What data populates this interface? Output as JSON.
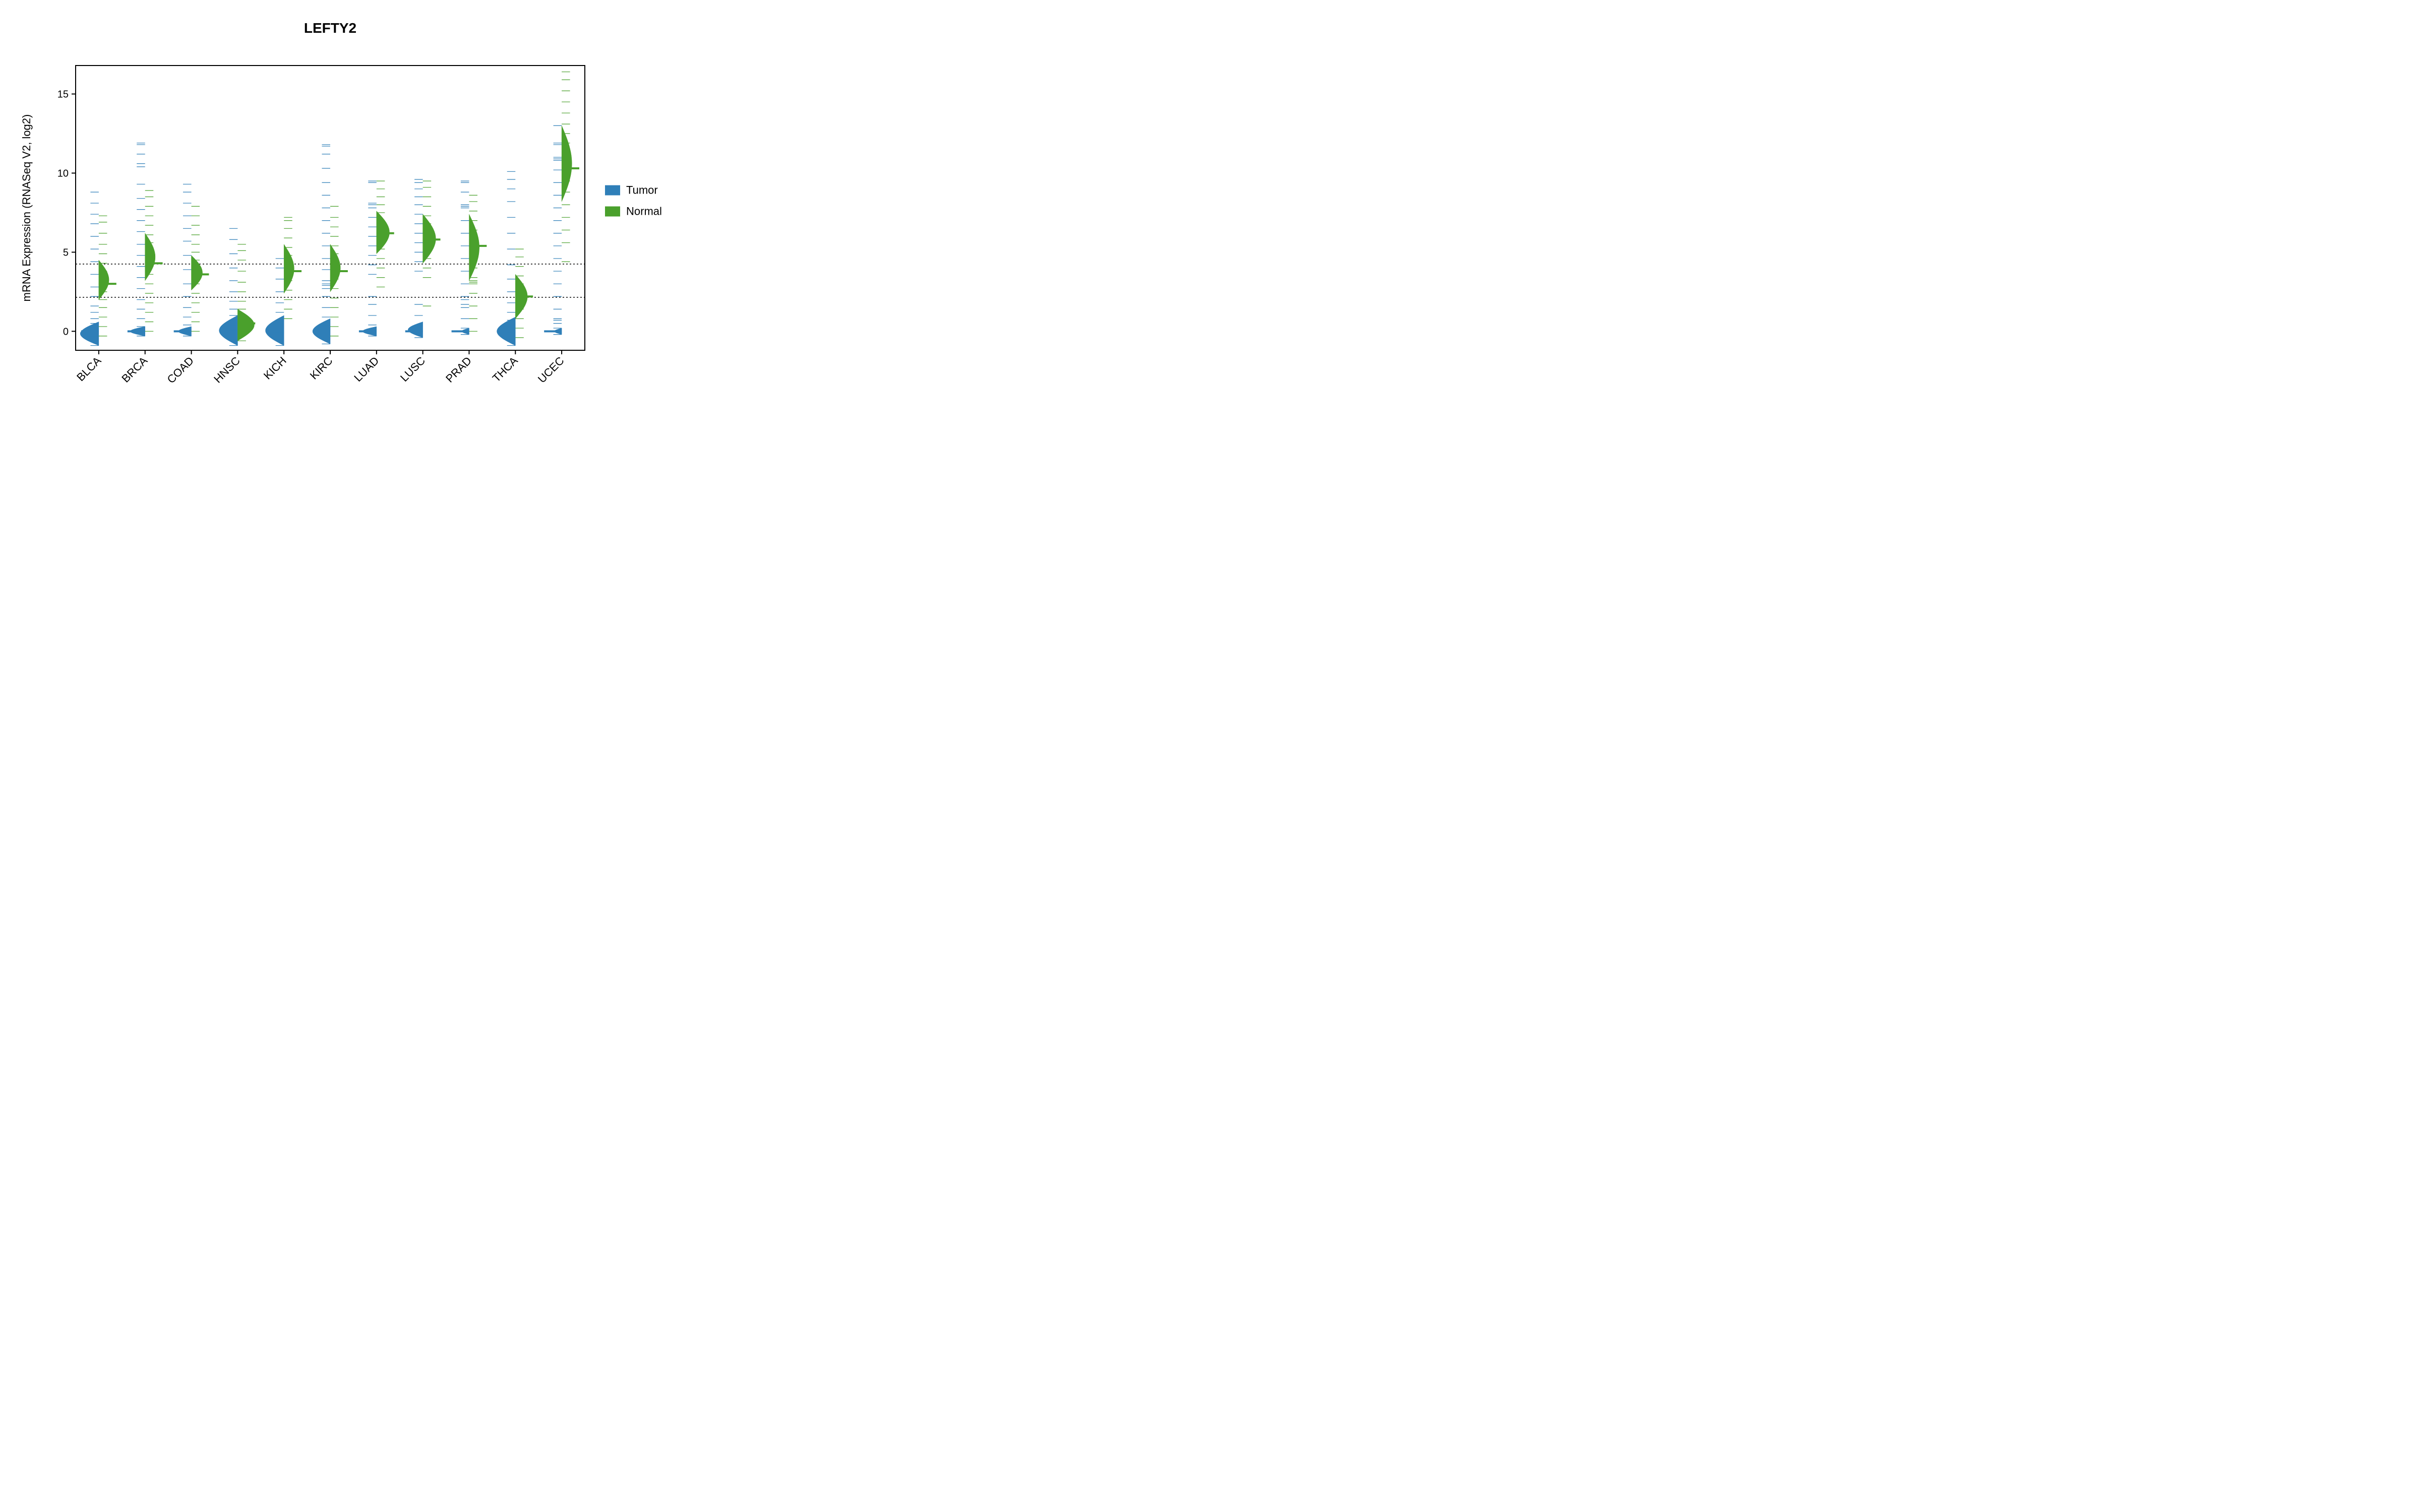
{
  "chart": {
    "type": "beanplot",
    "title": "LEFTY2",
    "ylabel": "mRNA Expression (RNASeq V2, log2)",
    "ylim": [
      -1.2,
      16.8
    ],
    "yticks": [
      0,
      5,
      10,
      15
    ],
    "hlines": [
      2.15,
      4.25
    ],
    "hline_color": "#000000",
    "background": "#ffffff",
    "border_color": "#000000",
    "categories": [
      "BLCA",
      "BRCA",
      "COAD",
      "HNSC",
      "KICH",
      "KIRC",
      "LUAD",
      "LUSC",
      "PRAD",
      "THCA",
      "UCEC"
    ],
    "groups": [
      "Tumor",
      "Normal"
    ],
    "colors": {
      "Tumor": "#2f7fb8",
      "Normal": "#4aa02c"
    },
    "half_width_max": 0.4,
    "series": {
      "BLCA": {
        "Tumor": {
          "mean": 0.0,
          "dense": [
            [
              -0.9,
              0.6,
              1.0
            ]
          ],
          "lines": [
            -0.9,
            -0.6,
            -0.3,
            0.0,
            0.2,
            0.5,
            0.8,
            1.2,
            1.6,
            2.2,
            2.8,
            3.6,
            4.4,
            5.2,
            6.0,
            6.8,
            7.4,
            8.1,
            8.8
          ]
        },
        "Normal": {
          "mean": 3.0,
          "dense": [
            [
              2.0,
              4.5,
              0.55
            ]
          ],
          "lines": [
            -0.3,
            0.3,
            0.9,
            1.5,
            2.0,
            2.5,
            3.0,
            3.4,
            3.8,
            4.3,
            4.9,
            5.5,
            6.2,
            6.9,
            7.3
          ]
        }
      },
      "BRCA": {
        "Tumor": {
          "mean": 0.0,
          "dense": [
            [
              -0.3,
              0.3,
              0.8
            ]
          ],
          "lines": [
            -0.3,
            0.0,
            0.3,
            0.8,
            1.4,
            2.0,
            2.7,
            3.4,
            4.1,
            4.8,
            5.5,
            6.3,
            7.0,
            7.7,
            8.4,
            9.3,
            10.4,
            10.6,
            11.2,
            11.8,
            11.9
          ]
        },
        "Normal": {
          "mean": 4.3,
          "dense": [
            [
              3.2,
              6.2,
              0.55
            ]
          ],
          "lines": [
            0.0,
            0.6,
            1.2,
            1.8,
            2.4,
            3.0,
            3.6,
            4.1,
            4.6,
            5.1,
            5.6,
            6.1,
            6.7,
            7.3,
            7.9,
            8.5,
            8.9
          ]
        }
      },
      "COAD": {
        "Tumor": {
          "mean": 0.0,
          "dense": [
            [
              -0.3,
              0.3,
              0.7
            ]
          ],
          "lines": [
            -0.3,
            0.0,
            0.4,
            0.9,
            1.5,
            2.2,
            3.0,
            3.9,
            4.8,
            5.7,
            6.5,
            7.3,
            8.1,
            8.8,
            9.3
          ]
        },
        "Normal": {
          "mean": 3.6,
          "dense": [
            [
              2.6,
              4.8,
              0.6
            ]
          ],
          "lines": [
            0.0,
            0.6,
            1.2,
            1.8,
            2.4,
            3.0,
            3.5,
            4.0,
            4.5,
            5.0,
            5.5,
            6.1,
            6.7,
            7.3,
            7.9
          ]
        }
      },
      "HNSC": {
        "Tumor": {
          "mean": 0.0,
          "dense": [
            [
              -0.9,
              1.0,
              1.0
            ]
          ],
          "lines": [
            -0.9,
            -0.5,
            -0.2,
            0.1,
            0.4,
            0.7,
            1.0,
            1.4,
            1.9,
            2.5,
            3.2,
            4.0,
            4.9,
            5.8,
            6.5
          ]
        },
        "Normal": {
          "mean": 0.5,
          "dense": [
            [
              -0.6,
              1.4,
              0.9
            ]
          ],
          "lines": [
            -0.6,
            -0.2,
            0.2,
            0.6,
            1.0,
            1.4,
            1.9,
            2.5,
            3.1,
            3.8,
            4.5,
            5.1,
            5.5
          ]
        }
      },
      "KICH": {
        "Tumor": {
          "mean": 0.0,
          "dense": [
            [
              -0.9,
              1.0,
              1.0
            ]
          ],
          "lines": [
            -0.9,
            -0.5,
            -0.1,
            0.3,
            0.7,
            1.2,
            1.8,
            2.5,
            3.3,
            4.0,
            4.6
          ]
        },
        "Normal": {
          "mean": 3.8,
          "dense": [
            [
              2.4,
              5.5,
              0.55
            ]
          ],
          "lines": [
            0.8,
            1.4,
            2.0,
            2.6,
            3.2,
            3.8,
            4.3,
            4.8,
            5.3,
            5.9,
            6.5,
            7.0,
            7.2
          ]
        }
      },
      "KIRC": {
        "Tumor": {
          "mean": 0.0,
          "dense": [
            [
              -0.8,
              0.8,
              0.95
            ]
          ],
          "lines": [
            -0.8,
            -0.4,
            0.0,
            0.4,
            0.9,
            1.5,
            2.2,
            2.7,
            2.9,
            3.0,
            3.2,
            3.9,
            4.6,
            5.4,
            6.2,
            7.0,
            7.8,
            8.6,
            9.4,
            10.3,
            11.2,
            11.7,
            11.8
          ]
        },
        "Normal": {
          "mean": 3.8,
          "dense": [
            [
              2.5,
              5.5,
              0.55
            ]
          ],
          "lines": [
            -0.3,
            0.3,
            0.9,
            1.5,
            2.1,
            2.7,
            3.3,
            3.9,
            4.4,
            4.9,
            5.4,
            6.0,
            6.6,
            7.2,
            7.9
          ]
        }
      },
      "LUAD": {
        "Tumor": {
          "mean": 0.0,
          "dense": [
            [
              -0.3,
              0.3,
              0.75
            ]
          ],
          "lines": [
            -0.3,
            0.0,
            0.4,
            1.0,
            1.7,
            2.2,
            3.6,
            4.2,
            4.8,
            5.4,
            6.0,
            6.6,
            7.2,
            7.8,
            8.0,
            8.1,
            9.4,
            9.5
          ]
        },
        "Normal": {
          "mean": 6.2,
          "dense": [
            [
              4.9,
              7.6,
              0.7
            ]
          ],
          "lines": [
            2.8,
            3.4,
            4.0,
            4.6,
            5.2,
            5.8,
            6.2,
            6.6,
            7.0,
            7.5,
            8.0,
            8.5,
            9.0,
            9.5
          ]
        }
      },
      "LUSC": {
        "Tumor": {
          "mean": 0.0,
          "dense": [
            [
              -0.4,
              0.6,
              0.8
            ]
          ],
          "lines": [
            -0.4,
            0.0,
            0.4,
            1.0,
            1.7,
            3.8,
            4.4,
            5.0,
            5.6,
            6.2,
            6.8,
            7.4,
            8.0,
            8.5,
            9.0,
            9.4,
            9.6
          ]
        },
        "Normal": {
          "mean": 5.8,
          "dense": [
            [
              4.3,
              7.4,
              0.7
            ]
          ],
          "lines": [
            1.6,
            3.4,
            4.0,
            4.6,
            5.2,
            5.8,
            6.3,
            6.8,
            7.3,
            7.9,
            8.5,
            9.1,
            9.5
          ]
        }
      },
      "PRAD": {
        "Tumor": {
          "mean": 0.0,
          "dense": [
            [
              -0.2,
              0.2,
              0.4
            ]
          ],
          "lines": [
            -0.2,
            0.2,
            0.8,
            1.5,
            1.7,
            2.0,
            2.2,
            3.0,
            3.8,
            4.6,
            5.4,
            6.2,
            7.0,
            7.8,
            7.9,
            8.0,
            8.8,
            9.4,
            9.5
          ]
        },
        "Normal": {
          "mean": 5.4,
          "dense": [
            [
              3.2,
              7.4,
              0.55
            ]
          ],
          "lines": [
            0.0,
            0.8,
            1.6,
            2.4,
            3.0,
            3.1,
            3.2,
            3.4,
            4.0,
            4.6,
            5.2,
            5.8,
            6.4,
            7.0,
            7.6,
            8.2,
            8.6
          ]
        }
      },
      "THCA": {
        "Tumor": {
          "mean": 0.0,
          "dense": [
            [
              -0.9,
              0.9,
              1.0
            ]
          ],
          "lines": [
            -0.9,
            -0.5,
            -0.1,
            0.3,
            0.7,
            1.2,
            1.8,
            2.5,
            3.3,
            4.2,
            5.2,
            6.2,
            7.2,
            8.2,
            9.0,
            9.6,
            10.1
          ]
        },
        "Normal": {
          "mean": 2.2,
          "dense": [
            [
              0.8,
              3.6,
              0.65
            ]
          ],
          "lines": [
            -0.4,
            0.2,
            0.8,
            1.4,
            2.0,
            2.5,
            3.0,
            3.5,
            4.1,
            4.7,
            5.2
          ]
        }
      },
      "UCEC": {
        "Tumor": {
          "mean": 0.0,
          "dense": [
            [
              -0.2,
              0.2,
              0.4
            ]
          ],
          "lines": [
            -0.2,
            0.2,
            0.5,
            0.7,
            0.8,
            1.4,
            2.2,
            3.0,
            3.8,
            4.6,
            5.4,
            6.2,
            7.0,
            7.8,
            8.6,
            9.4,
            10.2,
            10.8,
            10.9,
            11.0,
            11.8,
            11.9,
            13.0
          ]
        },
        "Normal": {
          "mean": 10.3,
          "dense": [
            [
              8.2,
              13.0,
              0.55
            ]
          ],
          "lines": [
            4.4,
            5.6,
            6.4,
            7.2,
            8.0,
            8.8,
            9.5,
            10.1,
            10.3,
            10.5,
            10.7,
            11.3,
            11.9,
            12.5,
            13.1,
            13.8,
            14.5,
            15.2,
            15.9,
            16.4
          ]
        }
      }
    },
    "title_fontsize": 28,
    "label_fontsize": 22,
    "tick_fontsize": 20
  },
  "legend": {
    "items": [
      {
        "label": "Tumor",
        "color": "#2f7fb8"
      },
      {
        "label": "Normal",
        "color": "#4aa02c"
      }
    ]
  }
}
